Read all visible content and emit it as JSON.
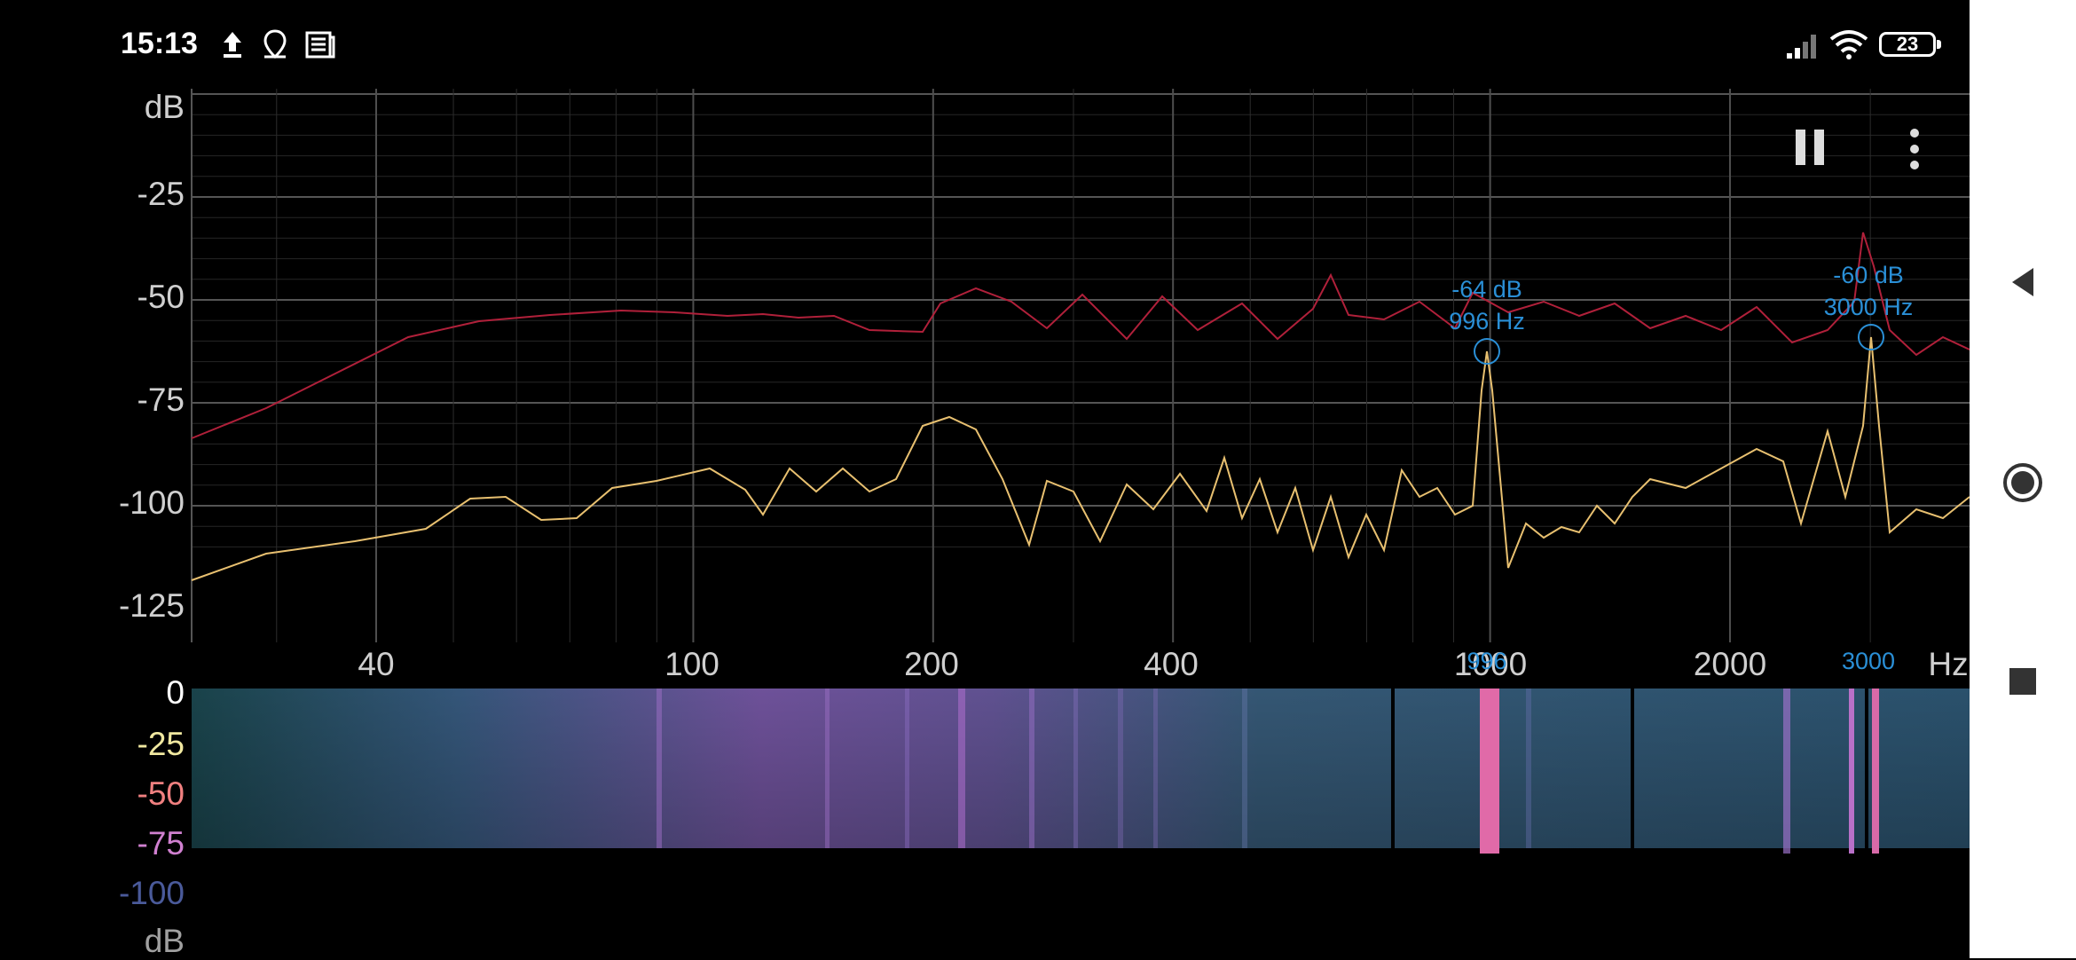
{
  "status_bar": {
    "time": "15:13",
    "icons": [
      "upload-icon",
      "location-icon",
      "news-icon"
    ],
    "battery": "23",
    "right_icons": [
      "signal-icon",
      "wifi-icon",
      "battery-icon"
    ]
  },
  "spectrum": {
    "y_unit": "dB",
    "y_ticks": [
      "-25",
      "-50",
      "-75",
      "-100",
      "-125"
    ],
    "x_ticks": [
      "40",
      "100",
      "200",
      "400",
      "1000",
      "2000"
    ],
    "x_unit": "Hz",
    "peaks": [
      {
        "db": "-64 dB",
        "hz": "996 Hz",
        "cursor": "996"
      },
      {
        "db": "-60 dB",
        "hz": "3000 Hz",
        "cursor": "3000"
      }
    ],
    "colors": {
      "max_hold": "#b0203a",
      "live": "#e8c070",
      "annotation": "#2a8fd6",
      "grid": "#3a3a3a"
    }
  },
  "spectrogram": {
    "scale_ticks": [
      "0",
      "-25",
      "-50",
      "-75",
      "-100"
    ],
    "scale_unit": "dB",
    "scale_colors": [
      "#ffffff",
      "#f0e8a0",
      "#f08080",
      "#d080d0",
      "#4a5a9a"
    ]
  },
  "controls": {
    "pause_icon": "pause-icon",
    "menu_icon": "more-vert-icon"
  },
  "navigation": {
    "back_icon": "back-icon",
    "home_icon": "home-icon",
    "recents_icon": "recents-icon"
  }
}
